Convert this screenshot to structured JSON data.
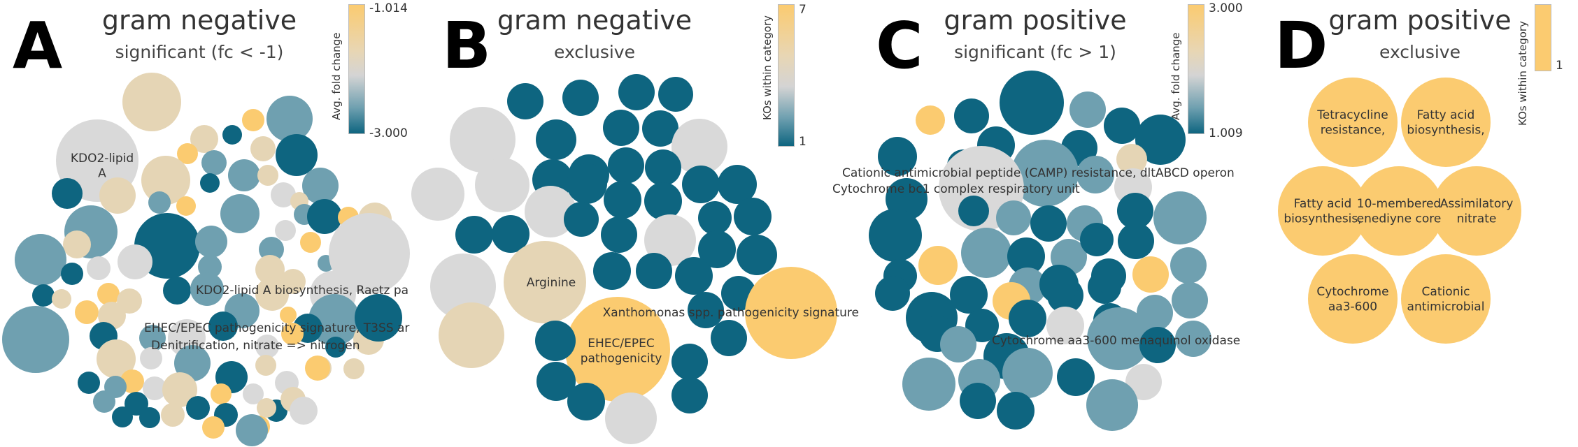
{
  "colors": {
    "dark": "#0e6580",
    "mid": "#6fa0b0",
    "neutral": "#d9d9d9",
    "tan": "#e5d5b5",
    "orange": "#fbcb70"
  },
  "panels": [
    {
      "letter": "A",
      "title": "gram negative",
      "subtitle": "significant (fc < -1)",
      "legend": {
        "title": "Avg. fold change",
        "max": "-1.014",
        "min": "-3.000"
      }
    },
    {
      "letter": "B",
      "title": "gram negative",
      "subtitle": "exclusive",
      "legend": {
        "title": "KOs within category",
        "max": "7",
        "min": "1"
      }
    },
    {
      "letter": "C",
      "title": "gram positive",
      "subtitle": "significant (fc > 1)",
      "legend": {
        "title": "Avg. fold change",
        "max": "3.000",
        "min": "1.009"
      }
    },
    {
      "letter": "D",
      "title": "gram positive",
      "subtitle": "exclusive",
      "legend": {
        "title": "KOs within category",
        "max": "1",
        "min": ""
      }
    }
  ],
  "chart_data": [
    {
      "type": "bubble",
      "panel": "A",
      "color_scale": {
        "label": "Avg. fold change",
        "min": -3.0,
        "max": -1.014
      },
      "labels": [
        [
          "KDO2-lipid",
          "A"
        ],
        [
          "KDO2-lipid A biosynthesis, Raetz pa"
        ],
        [
          "EHEC/EPEC pathogenicity signature, T3SS ar"
        ],
        [
          "Denitrification, nitrate => nitrogen"
        ]
      ]
    },
    {
      "type": "bubble",
      "panel": "B",
      "color_scale": {
        "label": "KOs within category",
        "min": 1,
        "max": 7
      },
      "labels": [
        [
          "Arginine"
        ],
        [
          "Xanthomonas spp. pathogenicity signature"
        ],
        [
          "EHEC/EPEC",
          "pathogenicity"
        ]
      ]
    },
    {
      "type": "bubble",
      "panel": "C",
      "color_scale": {
        "label": "Avg. fold change",
        "min": 1.009,
        "max": 3.0
      },
      "labels": [
        [
          "Cationic antimicrobial peptide (CAMP) resistance, dltABCD operon"
        ],
        [
          "Cytochrome bc1 complex respiratory unit"
        ],
        [
          "Cytochrome aa3-600 menaquinol oxidase"
        ]
      ]
    },
    {
      "type": "bubble",
      "panel": "D",
      "color_scale": {
        "label": "KOs within category",
        "min": 1,
        "max": 1
      },
      "labels": [
        [
          "Tetracycline",
          "resistance,"
        ],
        [
          "Fatty acid",
          "biosynthesis,"
        ],
        [
          "Fatty acid",
          "biosynthesis,"
        ],
        [
          "10-membered",
          "enediyne core"
        ],
        [
          "Assimilatory",
          "nitrate"
        ],
        [
          "Cytochrome",
          "aa3-600"
        ],
        [
          "Cationic",
          "antimicrobial"
        ]
      ]
    }
  ]
}
